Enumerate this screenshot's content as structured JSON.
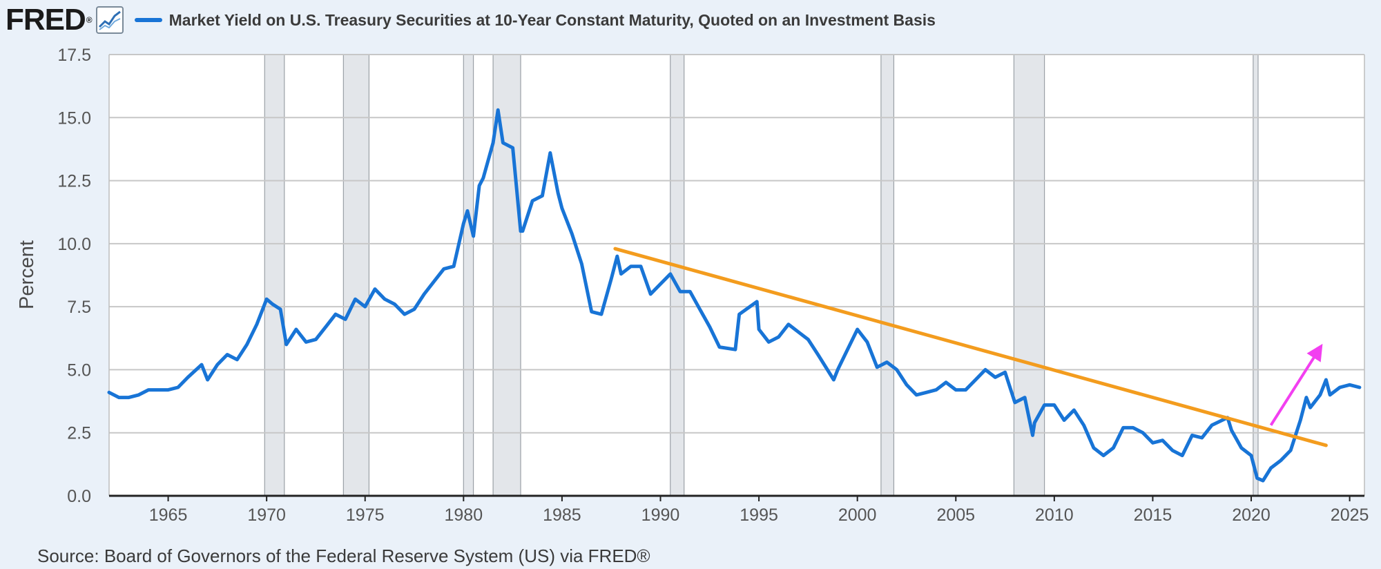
{
  "header": {
    "logo_text": "FRED",
    "logo_mark": "®",
    "logo_graph_icon": "line-chart-icon"
  },
  "source_text": "Source: Board of Governors of the Federal Reserve System (US) via FRED®",
  "colors": {
    "series": "#1874d6",
    "trendline": "#f39c1e",
    "arrow": "#f23ff0",
    "recession": "#e3e6ea",
    "grid": "#c7c7c7"
  },
  "chart_data": {
    "type": "line",
    "title": "",
    "xlabel": "",
    "ylabel": "Percent",
    "xlim": [
      1962.0,
      2025.75
    ],
    "ylim": [
      0,
      17.5
    ],
    "grid": true,
    "legend_placement": "top-left",
    "x_ticks": [
      1965,
      1970,
      1975,
      1980,
      1985,
      1990,
      1995,
      2000,
      2005,
      2010,
      2015,
      2020,
      2025
    ],
    "y_ticks": [
      0.0,
      2.5,
      5.0,
      7.5,
      10.0,
      12.5,
      15.0,
      17.5
    ],
    "y_tick_labels": [
      "0.0",
      "2.5",
      "5.0",
      "7.5",
      "10.0",
      "12.5",
      "15.0",
      "17.5"
    ],
    "series": [
      {
        "name": "Market Yield on U.S. Treasury Securities at 10-Year Constant Maturity, Quoted on an Investment Basis",
        "x": [
          1962.0,
          1962.5,
          1963.0,
          1963.5,
          1964.0,
          1964.5,
          1965.0,
          1965.5,
          1966.0,
          1966.7,
          1967.0,
          1967.5,
          1968.0,
          1968.5,
          1969.0,
          1969.5,
          1970.0,
          1970.3,
          1970.7,
          1971.0,
          1971.5,
          1972.0,
          1972.5,
          1973.0,
          1973.5,
          1974.0,
          1974.5,
          1975.0,
          1975.5,
          1976.0,
          1976.5,
          1977.0,
          1977.5,
          1978.0,
          1978.5,
          1979.0,
          1979.5,
          1980.0,
          1980.2,
          1980.5,
          1980.8,
          1981.0,
          1981.5,
          1981.75,
          1982.0,
          1982.5,
          1982.9,
          1983.0,
          1983.5,
          1984.0,
          1984.4,
          1984.8,
          1985.0,
          1985.5,
          1986.0,
          1986.5,
          1987.0,
          1987.5,
          1987.8,
          1988.0,
          1988.5,
          1989.0,
          1989.5,
          1990.0,
          1990.5,
          1991.0,
          1991.5,
          1992.0,
          1992.5,
          1993.0,
          1993.8,
          1994.0,
          1994.9,
          1995.0,
          1995.5,
          1996.0,
          1996.5,
          1997.0,
          1997.5,
          1998.0,
          1998.8,
          1999.0,
          1999.5,
          2000.0,
          2000.5,
          2001.0,
          2001.5,
          2002.0,
          2002.5,
          2003.0,
          2003.5,
          2004.0,
          2004.5,
          2005.0,
          2005.5,
          2006.0,
          2006.5,
          2007.0,
          2007.5,
          2008.0,
          2008.5,
          2008.9,
          2009.0,
          2009.5,
          2010.0,
          2010.5,
          2011.0,
          2011.5,
          2012.0,
          2012.5,
          2013.0,
          2013.5,
          2014.0,
          2014.5,
          2015.0,
          2015.5,
          2016.0,
          2016.5,
          2017.0,
          2017.5,
          2018.0,
          2018.8,
          2019.0,
          2019.5,
          2020.0,
          2020.3,
          2020.6,
          2021.0,
          2021.5,
          2022.0,
          2022.5,
          2022.8,
          2023.0,
          2023.5,
          2023.8,
          2024.0,
          2024.5,
          2025.0,
          2025.5
        ],
        "values": [
          4.1,
          3.9,
          3.9,
          4.0,
          4.2,
          4.2,
          4.2,
          4.3,
          4.7,
          5.2,
          4.6,
          5.2,
          5.6,
          5.4,
          6.0,
          6.8,
          7.8,
          7.6,
          7.4,
          6.0,
          6.6,
          6.1,
          6.2,
          6.7,
          7.2,
          7.0,
          7.8,
          7.5,
          8.2,
          7.8,
          7.6,
          7.2,
          7.4,
          8.0,
          8.5,
          9.0,
          9.1,
          10.8,
          11.3,
          10.3,
          12.3,
          12.6,
          14.0,
          15.3,
          14.0,
          13.8,
          10.5,
          10.5,
          11.7,
          11.9,
          13.6,
          12.0,
          11.4,
          10.4,
          9.2,
          7.3,
          7.2,
          8.6,
          9.5,
          8.8,
          9.1,
          9.1,
          8.0,
          8.4,
          8.8,
          8.1,
          8.1,
          7.4,
          6.7,
          5.9,
          5.8,
          7.2,
          7.7,
          6.6,
          6.1,
          6.3,
          6.8,
          6.5,
          6.2,
          5.6,
          4.6,
          5.0,
          5.8,
          6.6,
          6.1,
          5.1,
          5.3,
          5.0,
          4.4,
          4.0,
          4.1,
          4.2,
          4.5,
          4.2,
          4.2,
          4.6,
          5.0,
          4.7,
          4.9,
          3.7,
          3.9,
          2.4,
          2.9,
          3.6,
          3.6,
          3.0,
          3.4,
          2.8,
          1.9,
          1.6,
          1.9,
          2.7,
          2.7,
          2.5,
          2.1,
          2.2,
          1.8,
          1.6,
          2.4,
          2.3,
          2.8,
          3.1,
          2.6,
          1.9,
          1.6,
          0.7,
          0.6,
          1.1,
          1.4,
          1.8,
          3.0,
          3.9,
          3.5,
          4.0,
          4.6,
          4.0,
          4.3,
          4.4,
          4.3
        ]
      }
    ],
    "recessions": [
      [
        1969.9,
        1970.9
      ],
      [
        1973.9,
        1975.2
      ],
      [
        1980.0,
        1980.5
      ],
      [
        1981.5,
        1982.9
      ],
      [
        1990.5,
        1991.2
      ],
      [
        2001.2,
        2001.85
      ],
      [
        2007.95,
        2009.5
      ],
      [
        2020.1,
        2020.35
      ]
    ],
    "annotations": [
      {
        "type": "trendline",
        "x": [
          1987.7,
          2023.8
        ],
        "y": [
          9.8,
          2.0
        ]
      },
      {
        "type": "arrow",
        "x": [
          2021.0,
          2023.4
        ],
        "y": [
          2.8,
          5.75
        ]
      }
    ]
  }
}
